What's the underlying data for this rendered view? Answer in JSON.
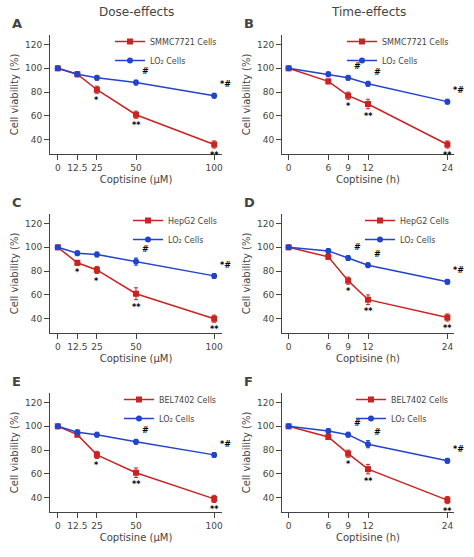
{
  "chart_data": [
    {
      "type": "line",
      "panel_label": "A",
      "title": "Dose-effects",
      "x": [
        0,
        12.5,
        25,
        50,
        100
      ],
      "xlim": [
        -5,
        105
      ],
      "xticks": [
        0,
        12.5,
        25,
        50,
        100
      ],
      "xlabel": "Coptisine (μM)",
      "ylabel": "Cell viability (%)",
      "ylim": [
        28,
        128
      ],
      "yticks": [
        40,
        60,
        80,
        100,
        120
      ],
      "grid": false,
      "legend": "upper right",
      "series": [
        {
          "name": "SMMC7721 Cells",
          "color": "#CC2222",
          "marker": "square",
          "values": [
            100,
            95,
            82,
            61,
            36
          ],
          "errors": [
            1,
            2,
            3,
            3,
            3
          ],
          "point_labels": [
            null,
            null,
            "*",
            "**",
            "**"
          ]
        },
        {
          "name": "LO₂ Cells",
          "color": "#2244CC",
          "marker": "circle",
          "values": [
            100,
            95,
            92,
            88,
            77
          ],
          "errors": [
            1,
            2,
            2,
            2,
            2
          ],
          "point_labels": [
            null,
            null,
            null,
            "#",
            "*#"
          ]
        }
      ]
    },
    {
      "type": "line",
      "panel_label": "B",
      "title": "Time-effects",
      "x": [
        0,
        6,
        9,
        12,
        24
      ],
      "xlim": [
        -1,
        25
      ],
      "xticks": [
        0,
        6,
        9,
        12,
        24
      ],
      "xlabel": "Coptisine (h)",
      "ylabel": "Cell viability (%)",
      "ylim": [
        28,
        128
      ],
      "yticks": [
        40,
        60,
        80,
        100,
        120
      ],
      "grid": false,
      "legend": "upper right",
      "series": [
        {
          "name": "SMMC7721 Cells",
          "color": "#CC2222",
          "marker": "square",
          "values": [
            100,
            89,
            77,
            70,
            36
          ],
          "errors": [
            1,
            2,
            3,
            4,
            3
          ],
          "point_labels": [
            null,
            null,
            "*",
            "**",
            "**"
          ]
        },
        {
          "name": "LO₂ Cells",
          "color": "#2244CC",
          "marker": "circle",
          "values": [
            100,
            95,
            92,
            87,
            72
          ],
          "errors": [
            1,
            2,
            2,
            2,
            2
          ],
          "point_labels": [
            null,
            null,
            "#",
            "#",
            "*#"
          ]
        }
      ]
    },
    {
      "type": "line",
      "panel_label": "C",
      "x": [
        0,
        12.5,
        25,
        50,
        100
      ],
      "xlim": [
        -5,
        105
      ],
      "xticks": [
        0,
        12.5,
        25,
        50,
        100
      ],
      "xlabel": "Coptisine (μM)",
      "ylabel": "Cell viability (%)",
      "ylim": [
        28,
        128
      ],
      "yticks": [
        40,
        60,
        80,
        100,
        120
      ],
      "grid": false,
      "legend": "upper right",
      "series": [
        {
          "name": "HepG2 Cells",
          "color": "#CC2222",
          "marker": "square",
          "values": [
            100,
            87,
            81,
            61,
            40
          ],
          "errors": [
            1,
            2,
            3,
            5,
            3
          ],
          "point_labels": [
            null,
            "*",
            "*",
            "**",
            "**"
          ]
        },
        {
          "name": "LO₂ Cells",
          "color": "#2244CC",
          "marker": "circle",
          "values": [
            100,
            95,
            94,
            88,
            76
          ],
          "errors": [
            1,
            2,
            2,
            3,
            2
          ],
          "point_labels": [
            null,
            null,
            null,
            "#",
            "*#"
          ]
        }
      ]
    },
    {
      "type": "line",
      "panel_label": "D",
      "x": [
        0,
        6,
        9,
        12,
        24
      ],
      "xlim": [
        -1,
        25
      ],
      "xticks": [
        0,
        6,
        9,
        12,
        24
      ],
      "xlabel": "Coptisine (h)",
      "ylabel": "Cell viability (%)",
      "ylim": [
        28,
        128
      ],
      "yticks": [
        40,
        60,
        80,
        100,
        120
      ],
      "grid": false,
      "legend": "upper right",
      "series": [
        {
          "name": "HepG2 Cells",
          "color": "#CC2222",
          "marker": "square",
          "values": [
            100,
            92,
            72,
            56,
            41
          ],
          "errors": [
            1,
            2,
            3,
            4,
            3
          ],
          "point_labels": [
            null,
            null,
            "*",
            "**",
            "**"
          ]
        },
        {
          "name": "LO₂ Cells",
          "color": "#2244CC",
          "marker": "circle",
          "values": [
            100,
            97,
            91,
            85,
            71
          ],
          "errors": [
            1,
            2,
            2,
            2,
            2
          ],
          "point_labels": [
            null,
            null,
            "#",
            "#",
            "*#"
          ]
        }
      ]
    },
    {
      "type": "line",
      "panel_label": "E",
      "x": [
        0,
        12.5,
        25,
        50,
        100
      ],
      "xlim": [
        -5,
        105
      ],
      "xticks": [
        0,
        12.5,
        25,
        50,
        100
      ],
      "xlabel": "Coptisine (μM)",
      "ylabel": "Cell viability (%)",
      "ylim": [
        28,
        128
      ],
      "yticks": [
        40,
        60,
        80,
        100,
        120
      ],
      "grid": false,
      "legend": "upper right",
      "series": [
        {
          "name": "BEL7402 Cells",
          "color": "#CC2222",
          "marker": "square",
          "values": [
            100,
            93,
            76,
            61,
            39
          ],
          "errors": [
            1,
            2,
            3,
            4,
            3
          ],
          "point_labels": [
            null,
            null,
            "*",
            "**",
            "**"
          ]
        },
        {
          "name": "LO₂ Cells",
          "color": "#2244CC",
          "marker": "circle",
          "values": [
            100,
            95,
            93,
            87,
            76
          ],
          "errors": [
            1,
            2,
            2,
            2,
            2
          ],
          "point_labels": [
            null,
            null,
            null,
            "#",
            "*#"
          ]
        }
      ]
    },
    {
      "type": "line",
      "panel_label": "F",
      "x": [
        0,
        6,
        9,
        12,
        24
      ],
      "xlim": [
        -1,
        25
      ],
      "xticks": [
        0,
        6,
        9,
        12,
        24
      ],
      "xlabel": "Coptisine (h)",
      "ylabel": "Cell viability (%)",
      "ylim": [
        28,
        128
      ],
      "yticks": [
        40,
        60,
        80,
        100,
        120
      ],
      "grid": false,
      "legend": "upper right",
      "series": [
        {
          "name": "BEL7402 Cells",
          "color": "#CC2222",
          "marker": "square",
          "values": [
            100,
            91,
            77,
            64,
            38
          ],
          "errors": [
            1,
            2,
            3,
            4,
            3
          ],
          "point_labels": [
            null,
            null,
            "*",
            "**",
            "**"
          ]
        },
        {
          "name": "LO₂ Cells",
          "color": "#2244CC",
          "marker": "circle",
          "values": [
            100,
            96,
            93,
            85,
            71
          ],
          "errors": [
            1,
            2,
            2,
            3,
            2
          ],
          "point_labels": [
            null,
            null,
            "#",
            "#",
            "*#"
          ]
        }
      ]
    }
  ]
}
